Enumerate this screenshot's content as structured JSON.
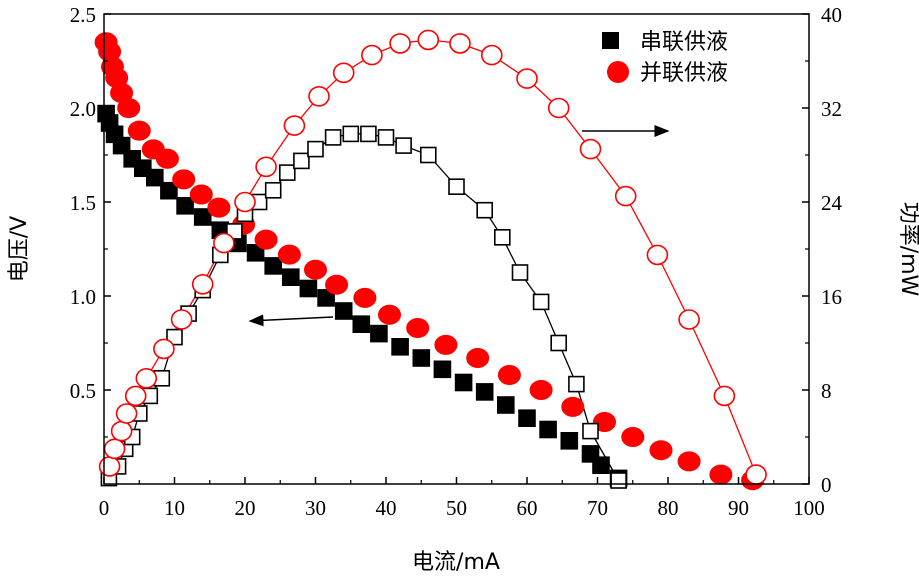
{
  "chart_data": {
    "type": "scatter",
    "xlabel": "电流/mA",
    "ylabel_left": "电压/V",
    "ylabel_right": "功率/mW",
    "xlim": [
      0,
      100
    ],
    "ylim_left": [
      0,
      2.5
    ],
    "ylim_right": [
      0,
      40
    ],
    "x_ticks": [
      "0",
      "10",
      "20",
      "30",
      "40",
      "50",
      "60",
      "70",
      "80",
      "90",
      "100"
    ],
    "y_left_ticks": [
      "0.5",
      "1.0",
      "1.5",
      "2.0",
      "2.5"
    ],
    "y_right_ticks": [
      "0",
      "8",
      "16",
      "24",
      "32",
      "40"
    ],
    "legend": [
      {
        "label": "串联供液",
        "marker": "square",
        "color": "#000000"
      },
      {
        "label": "并联供液",
        "marker": "circle",
        "color": "#ff0000"
      }
    ],
    "series": [
      {
        "name": "串联供液 电压",
        "axis": "left",
        "marker": "square",
        "fill": "#000000",
        "x": [
          0.3,
          0.8,
          1.5,
          2.5,
          4.0,
          5.5,
          7.2,
          9.2,
          11.5,
          14.0,
          16.5,
          19.0,
          21.5,
          24.0,
          26.5,
          29.0,
          31.5,
          34.0,
          36.5,
          39.0,
          42.0,
          45.0,
          48.0,
          51.0,
          54.0,
          57.0,
          60.0,
          63.0,
          66.0,
          69.0,
          70.5,
          73.0
        ],
        "y": [
          1.97,
          1.92,
          1.86,
          1.8,
          1.73,
          1.68,
          1.63,
          1.56,
          1.48,
          1.42,
          1.35,
          1.28,
          1.23,
          1.16,
          1.1,
          1.04,
          0.99,
          0.92,
          0.85,
          0.8,
          0.73,
          0.67,
          0.61,
          0.54,
          0.49,
          0.42,
          0.35,
          0.29,
          0.23,
          0.16,
          0.1,
          0.03
        ]
      },
      {
        "name": "并联供液 电压",
        "axis": "left",
        "marker": "circle",
        "fill": "#ff0000",
        "x": [
          0.3,
          0.8,
          1.2,
          1.8,
          2.5,
          3.5,
          5.0,
          7.0,
          9.0,
          11.3,
          13.8,
          16.3,
          19.8,
          23.0,
          26.3,
          30.0,
          33.0,
          37.0,
          40.5,
          44.5,
          48.5,
          53.0,
          57.5,
          62.0,
          66.5,
          71.0,
          75.0,
          79.0,
          83.0,
          87.5,
          92.0
        ],
        "y": [
          2.35,
          2.3,
          2.22,
          2.16,
          2.08,
          2.0,
          1.88,
          1.78,
          1.73,
          1.62,
          1.54,
          1.47,
          1.38,
          1.3,
          1.22,
          1.14,
          1.06,
          0.99,
          0.9,
          0.83,
          0.74,
          0.67,
          0.58,
          0.5,
          0.41,
          0.33,
          0.25,
          0.18,
          0.12,
          0.05,
          0.02
        ]
      },
      {
        "name": "串联供液 功率",
        "axis": "right",
        "marker": "square",
        "fill": "none",
        "x": [
          0.7,
          2.0,
          3.0,
          4.0,
          5.0,
          6.5,
          8.2,
          10.0,
          12.0,
          14.0,
          16.5,
          18.5,
          20.0,
          22.0,
          24.0,
          26.0,
          28.0,
          30.0,
          32.5,
          35.0,
          37.5,
          40.0,
          42.5,
          46.0,
          50.0,
          54.0,
          56.5,
          59.0,
          62.0,
          64.5,
          67.0,
          69.0,
          73.0
        ],
        "y": [
          0.5,
          1.5,
          3.0,
          4.0,
          6.0,
          7.5,
          9.0,
          12.5,
          14.5,
          16.5,
          19.5,
          21.5,
          23.0,
          24.0,
          25.0,
          26.5,
          27.5,
          28.5,
          29.5,
          29.8,
          29.8,
          29.5,
          28.8,
          28.0,
          25.3,
          23.3,
          21.0,
          18.0,
          15.5,
          12.0,
          8.5,
          4.5,
          0.3
        ]
      },
      {
        "name": "并联供液 功率",
        "axis": "right",
        "marker": "circle",
        "fill": "none",
        "x": [
          0.8,
          1.5,
          2.5,
          3.2,
          4.5,
          6.0,
          8.5,
          11.0,
          14.0,
          17.0,
          20.0,
          23.0,
          27.0,
          30.5,
          34.0,
          38.0,
          42.0,
          46.0,
          50.5,
          55.0,
          60.0,
          64.5,
          69.0,
          74.0,
          78.5,
          83.0,
          88.0,
          92.5
        ],
        "y": [
          1.5,
          3.0,
          4.5,
          6.0,
          7.5,
          9.0,
          11.5,
          14.0,
          17.0,
          20.5,
          24.0,
          27.0,
          30.5,
          33.0,
          35.0,
          36.5,
          37.5,
          37.8,
          37.5,
          36.5,
          34.5,
          32.0,
          28.5,
          24.5,
          19.5,
          14.0,
          7.5,
          0.8
        ]
      }
    ],
    "annotations": [
      {
        "type": "arrow",
        "direction": "right",
        "points_to": "功率/mW"
      },
      {
        "type": "arrow",
        "direction": "left",
        "points_to": "电压/V"
      }
    ]
  }
}
